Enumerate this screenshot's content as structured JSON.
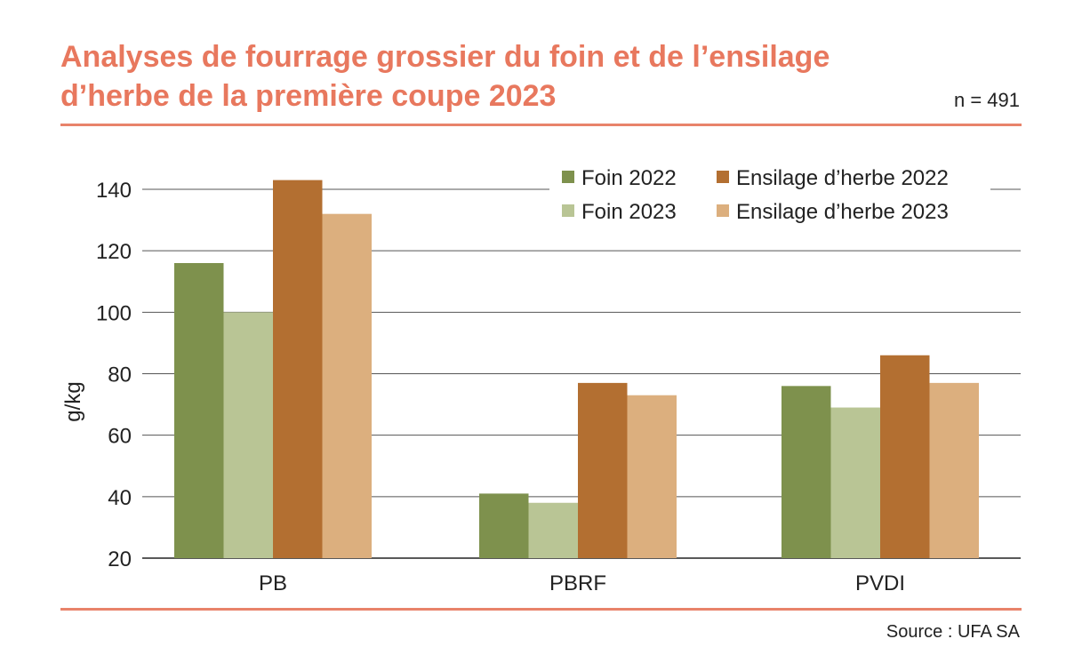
{
  "title_line1": "Analyses de fourrage grossier du foin et de l’ensilage",
  "title_line2": "d’herbe de la première coupe 2023",
  "n_label": "n = 491",
  "source": "Source : UFA SA",
  "chart_data": {
    "type": "bar",
    "title": "Analyses de fourrage grossier du foin et de l’ensilage d’herbe de la première coupe 2023",
    "categories": [
      "PB",
      "PBRF",
      "PVDI"
    ],
    "series": [
      {
        "name": "Foin 2022",
        "color": "#7e914d",
        "values": [
          116,
          41,
          76
        ]
      },
      {
        "name": "Foin 2023",
        "color": "#b9c595",
        "values": [
          100,
          38,
          69
        ]
      },
      {
        "name": "Ensilage d’herbe 2022",
        "color": "#b36f31",
        "values": [
          143,
          77,
          86
        ]
      },
      {
        "name": "Ensilage d’herbe 2023",
        "color": "#dcaf7e",
        "values": [
          132,
          73,
          77
        ]
      }
    ],
    "xlabel": "",
    "ylabel": "g/kg",
    "ylim": [
      20,
      140
    ],
    "yticks": [
      20,
      40,
      60,
      80,
      100,
      120,
      140
    ],
    "grid": true,
    "legend_position": "top-right"
  }
}
